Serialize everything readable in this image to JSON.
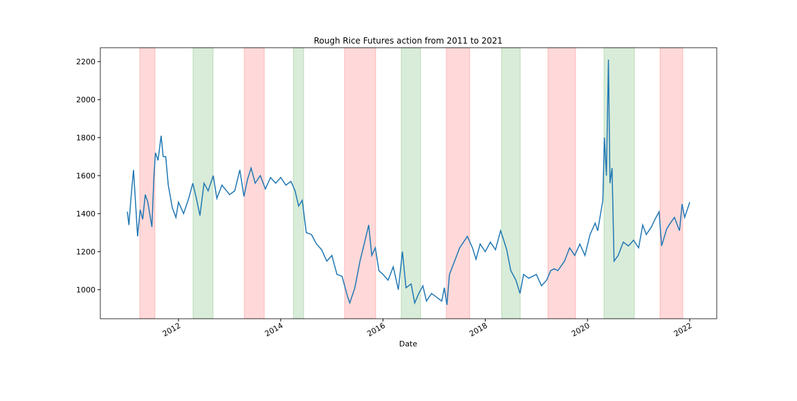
{
  "chart_data": {
    "type": "line",
    "title": "Rough Rice Futures action from 2011 to 2021",
    "x_label": "Date",
    "x": [
      2011.0,
      2011.03,
      2011.07,
      2011.12,
      2011.15,
      2011.2,
      2011.25,
      2011.3,
      2011.35,
      2011.4,
      2011.48,
      2011.52,
      2011.55,
      2011.6,
      2011.66,
      2011.7,
      2011.75,
      2011.8,
      2011.88,
      2011.95,
      2012.0,
      2012.1,
      2012.2,
      2012.28,
      2012.35,
      2012.42,
      2012.5,
      2012.58,
      2012.68,
      2012.75,
      2012.85,
      2013.0,
      2013.1,
      2013.2,
      2013.28,
      2013.35,
      2013.42,
      2013.5,
      2013.6,
      2013.7,
      2013.8,
      2013.9,
      2014.0,
      2014.1,
      2014.2,
      2014.28,
      2014.35,
      2014.42,
      2014.5,
      2014.6,
      2014.7,
      2014.8,
      2014.9,
      2015.0,
      2015.1,
      2015.2,
      2015.3,
      2015.35,
      2015.45,
      2015.55,
      2015.65,
      2015.72,
      2015.78,
      2015.85,
      2015.92,
      2016.0,
      2016.1,
      2016.2,
      2016.3,
      2016.38,
      2016.45,
      2016.55,
      2016.62,
      2016.7,
      2016.78,
      2016.85,
      2016.95,
      2017.05,
      2017.15,
      2017.2,
      2017.25,
      2017.3,
      2017.4,
      2017.5,
      2017.6,
      2017.65,
      2017.75,
      2017.82,
      2017.9,
      2018.0,
      2018.1,
      2018.2,
      2018.3,
      2018.35,
      2018.42,
      2018.5,
      2018.6,
      2018.68,
      2018.75,
      2018.85,
      2019.0,
      2019.1,
      2019.2,
      2019.28,
      2019.35,
      2019.42,
      2019.55,
      2019.65,
      2019.75,
      2019.85,
      2019.95,
      2020.05,
      2020.15,
      2020.2,
      2020.3,
      2020.33,
      2020.37,
      2020.41,
      2020.44,
      2020.48,
      2020.52,
      2020.6,
      2020.7,
      2020.8,
      2020.9,
      2021.0,
      2021.08,
      2021.15,
      2021.25,
      2021.32,
      2021.4,
      2021.45,
      2021.55,
      2021.62,
      2021.7,
      2021.8,
      2021.85,
      2021.9,
      2022.0
    ],
    "series": [
      {
        "color": "#1f77b4",
        "values": [
          1410,
          1340,
          1480,
          1630,
          1500,
          1280,
          1420,
          1370,
          1500,
          1460,
          1330,
          1600,
          1720,
          1680,
          1810,
          1700,
          1700,
          1550,
          1430,
          1380,
          1460,
          1400,
          1480,
          1560,
          1480,
          1390,
          1560,
          1520,
          1600,
          1480,
          1550,
          1500,
          1520,
          1630,
          1490,
          1580,
          1640,
          1560,
          1600,
          1530,
          1590,
          1560,
          1590,
          1550,
          1570,
          1520,
          1440,
          1470,
          1300,
          1290,
          1240,
          1210,
          1150,
          1180,
          1080,
          1070,
          970,
          930,
          1010,
          1150,
          1260,
          1340,
          1180,
          1220,
          1100,
          1080,
          1050,
          1120,
          1000,
          1200,
          1010,
          1030,
          930,
          980,
          1020,
          940,
          980,
          960,
          940,
          1010,
          920,
          1080,
          1150,
          1220,
          1260,
          1280,
          1220,
          1160,
          1240,
          1200,
          1250,
          1210,
          1310,
          1270,
          1210,
          1100,
          1050,
          980,
          1080,
          1060,
          1080,
          1020,
          1050,
          1100,
          1110,
          1100,
          1150,
          1220,
          1180,
          1240,
          1180,
          1290,
          1350,
          1310,
          1470,
          1800,
          1600,
          2210,
          1560,
          1640,
          1150,
          1180,
          1250,
          1230,
          1260,
          1220,
          1340,
          1290,
          1330,
          1370,
          1410,
          1230,
          1320,
          1350,
          1380,
          1310,
          1450,
          1380,
          1460
        ]
      }
    ],
    "spans": [
      {
        "start": 2011.242,
        "end": 2011.54,
        "color": "#ff0000"
      },
      {
        "start": 2012.284,
        "end": 2012.677,
        "color": "#008000"
      },
      {
        "start": 2013.286,
        "end": 2013.678,
        "color": "#ff0000"
      },
      {
        "start": 2014.246,
        "end": 2014.449,
        "color": "#008000"
      },
      {
        "start": 2015.248,
        "end": 2015.857,
        "color": "#ff0000"
      },
      {
        "start": 2016.357,
        "end": 2016.736,
        "color": "#008000"
      },
      {
        "start": 2017.237,
        "end": 2017.697,
        "color": "#ff0000"
      },
      {
        "start": 2018.319,
        "end": 2018.685,
        "color": "#008000"
      },
      {
        "start": 2019.226,
        "end": 2019.767,
        "color": "#ff0000"
      },
      {
        "start": 2020.322,
        "end": 2020.918,
        "color": "#008000"
      },
      {
        "start": 2021.418,
        "end": 2021.865,
        "color": "#ff0000"
      }
    ],
    "xlim": [
      2010.471,
      2022.528
    ],
    "xticks": [
      2012,
      2014,
      2016,
      2018,
      2020,
      2022
    ],
    "ylim": [
      847,
      2273
    ],
    "yticks": [
      1000,
      1200,
      1400,
      1600,
      1800,
      2000,
      2200
    ]
  }
}
